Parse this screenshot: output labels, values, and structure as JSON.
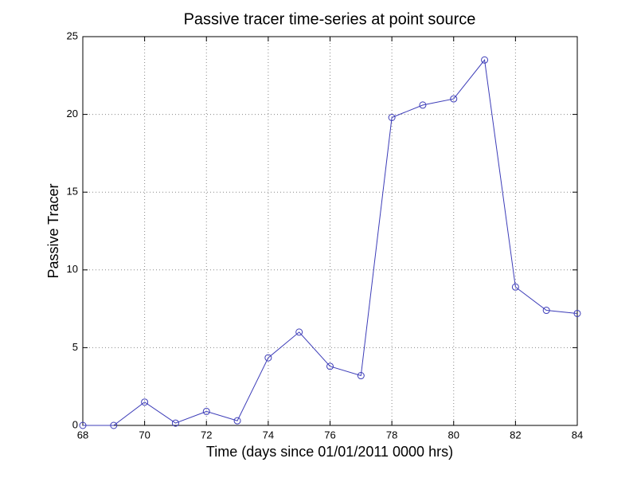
{
  "chart_data": {
    "type": "line",
    "title": "Passive tracer time-series at point source",
    "x_label": "Time (days since 01/01/2011 0000 hrs)",
    "y_label": "Passive Tracer",
    "x": [
      68,
      69,
      70,
      71,
      72,
      73,
      74,
      75,
      76,
      77,
      78,
      79,
      80,
      81,
      82,
      83,
      84
    ],
    "series": [
      {
        "name": "Passive Tracer",
        "color": "#3c3cb8",
        "values": [
          0,
          0,
          1.5,
          0.15,
          0.9,
          0.3,
          4.35,
          6.0,
          3.8,
          3.2,
          19.8,
          20.6,
          21.0,
          23.5,
          8.9,
          7.4,
          7.2
        ]
      }
    ],
    "xlim": [
      68,
      84
    ],
    "xticks": [
      68,
      70,
      72,
      74,
      76,
      78,
      80,
      82,
      84
    ],
    "ylim": [
      0,
      25
    ],
    "yticks": [
      0,
      5,
      10,
      15,
      20,
      25
    ],
    "grid": true,
    "marker": "circle"
  }
}
